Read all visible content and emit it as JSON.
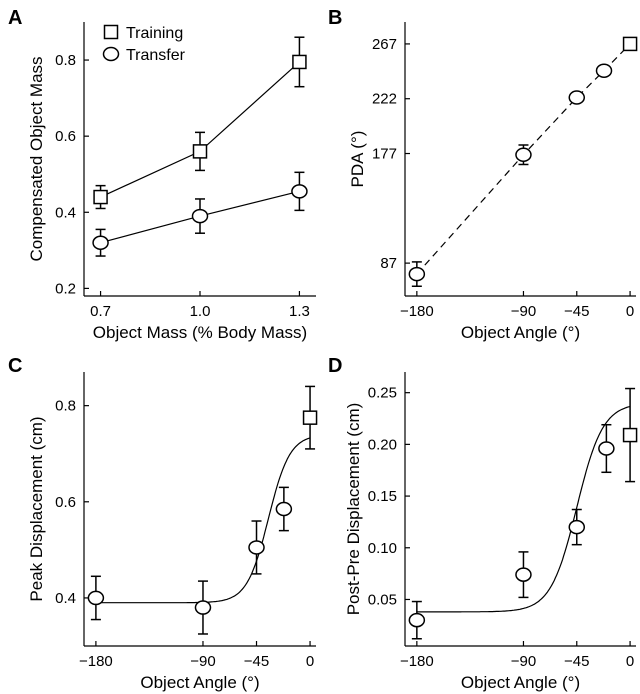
{
  "chart_data": [
    {
      "panel": "A",
      "type": "line",
      "xlabel": "Object Mass (% Body Mass)",
      "ylabel": "Compensated Object Mass",
      "x": [
        0.7,
        1.0,
        1.3
      ],
      "xticks": [
        "0.7",
        "1.0",
        "1.3"
      ],
      "xlim": [
        0.65,
        1.35
      ],
      "ylim": [
        0.18,
        0.9
      ],
      "yticks": [
        0.2,
        0.4,
        0.6,
        0.8
      ],
      "ytick_labels": [
        "0.2",
        "0.4",
        "0.6",
        "0.8"
      ],
      "legend": {
        "position": "top-left"
      },
      "series": [
        {
          "name": "Training",
          "marker": "square",
          "values": [
            0.44,
            0.56,
            0.795
          ],
          "errors": [
            0.03,
            0.05,
            0.065
          ]
        },
        {
          "name": "Transfer",
          "marker": "circle",
          "values": [
            0.32,
            0.39,
            0.455
          ],
          "errors": [
            0.035,
            0.045,
            0.05
          ]
        }
      ]
    },
    {
      "panel": "B",
      "type": "line",
      "xlabel": "Object Angle (°)",
      "ylabel": "PDA (°)",
      "xlim": [
        -190,
        5
      ],
      "xticks": [
        -180,
        -90,
        -45,
        0
      ],
      "xtick_labels": [
        "−180",
        "−90",
        "−45",
        "0"
      ],
      "ylim": [
        60,
        285
      ],
      "yticks": [
        87,
        177,
        222,
        267
      ],
      "ytick_labels": [
        "87",
        "177",
        "222",
        "267"
      ],
      "fit_style": "dashed",
      "points": [
        {
          "x": -180,
          "y": 78,
          "err": 10,
          "marker": "circle"
        },
        {
          "x": -90,
          "y": 176,
          "err": 8,
          "marker": "circle"
        },
        {
          "x": -45,
          "y": 223,
          "err": 3,
          "marker": "circle"
        },
        {
          "x": -22,
          "y": 245,
          "err": 3,
          "marker": "circle"
        },
        {
          "x": 0,
          "y": 267,
          "err": 3,
          "marker": "square"
        }
      ],
      "fit": [
        [
          -180,
          78
        ],
        [
          -90,
          176
        ],
        [
          -45,
          223
        ],
        [
          -22,
          245
        ],
        [
          0,
          267
        ]
      ]
    },
    {
      "panel": "C",
      "type": "line",
      "xlabel": "Object Angle (°)",
      "ylabel": "Peak Displacement (cm)",
      "xlim": [
        -190,
        5
      ],
      "xticks": [
        -180,
        -90,
        -45,
        0
      ],
      "xtick_labels": [
        "−180",
        "−90",
        "−45",
        "0"
      ],
      "ylim": [
        0.3,
        0.87
      ],
      "yticks": [
        0.4,
        0.6,
        0.8
      ],
      "ytick_labels": [
        "0.4",
        "0.6",
        "0.8"
      ],
      "points": [
        {
          "x": -180,
          "y": 0.4,
          "err": 0.045,
          "marker": "circle"
        },
        {
          "x": -90,
          "y": 0.38,
          "err": 0.055,
          "marker": "circle"
        },
        {
          "x": -45,
          "y": 0.505,
          "err": 0.055,
          "marker": "circle"
        },
        {
          "x": -22,
          "y": 0.585,
          "err": 0.045,
          "marker": "circle"
        },
        {
          "x": 0,
          "y": 0.775,
          "err": 0.065,
          "marker": "square"
        }
      ],
      "fit_sigmoid": {
        "base": 0.39,
        "amp": 0.35,
        "center": -35,
        "scale": 9
      }
    },
    {
      "panel": "D",
      "type": "line",
      "xlabel": "Object Angle (°)",
      "ylabel": "Post-Pre Displacement (cm)",
      "xlim": [
        -190,
        5
      ],
      "xticks": [
        -180,
        -90,
        -45,
        0
      ],
      "xtick_labels": [
        "−180",
        "−90",
        "−45",
        "0"
      ],
      "ylim": [
        0.005,
        0.27
      ],
      "yticks": [
        0.05,
        0.1,
        0.15,
        0.2,
        0.25
      ],
      "ytick_labels": [
        "0.05",
        "0.10",
        "0.15",
        "0.20",
        "0.25"
      ],
      "points": [
        {
          "x": -180,
          "y": 0.03,
          "err": 0.018,
          "marker": "circle"
        },
        {
          "x": -90,
          "y": 0.074,
          "err": 0.022,
          "marker": "circle"
        },
        {
          "x": -45,
          "y": 0.12,
          "err": 0.017,
          "marker": "circle"
        },
        {
          "x": -20,
          "y": 0.196,
          "err": 0.023,
          "marker": "circle"
        },
        {
          "x": 0,
          "y": 0.209,
          "err": 0.045,
          "marker": "square"
        }
      ],
      "fit_sigmoid": {
        "base": 0.038,
        "amp": 0.202,
        "center": -45,
        "scale": 11
      }
    }
  ]
}
